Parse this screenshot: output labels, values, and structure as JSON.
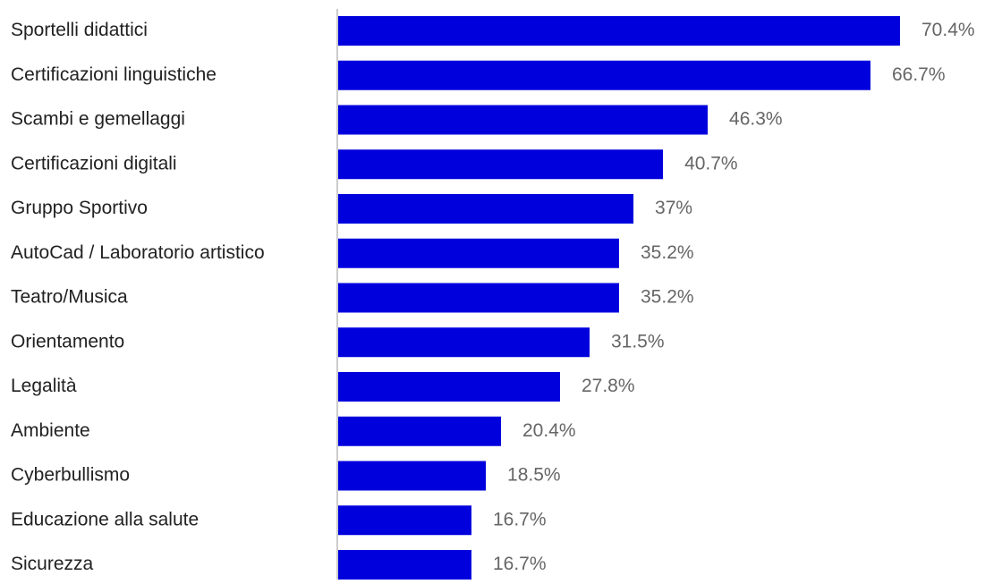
{
  "chart_data": {
    "type": "bar",
    "orientation": "horizontal",
    "categories": [
      "Sportelli didattici",
      "Certificazioni linguistiche",
      "Scambi e gemellaggi",
      "Certificazioni digitali",
      "Gruppo Sportivo",
      "AutoCad / Laboratorio artistico",
      "Teatro/Musica",
      "Orientamento",
      "Legalità",
      "Ambiente",
      "Cyberbullismo",
      "Educazione alla salute",
      "Sicurezza"
    ],
    "values": [
      70.4,
      66.7,
      46.3,
      40.7,
      37,
      35.2,
      35.2,
      31.5,
      27.8,
      20.4,
      18.5,
      16.7,
      16.7
    ],
    "value_labels": [
      "70.4%",
      "66.7%",
      "46.3%",
      "40.7%",
      "37%",
      "35.2%",
      "35.2%",
      "31.5%",
      "27.8%",
      "20.4%",
      "18.5%",
      "16.7%",
      "16.7%"
    ],
    "title": "",
    "xlabel": "",
    "ylabel": "",
    "xlim": [
      0,
      70.4
    ],
    "grid": false,
    "legend": "none",
    "colors": {
      "bar": "#0000dd",
      "axis": "#999999",
      "category_text": "#222222",
      "value_text": "#666666"
    }
  }
}
